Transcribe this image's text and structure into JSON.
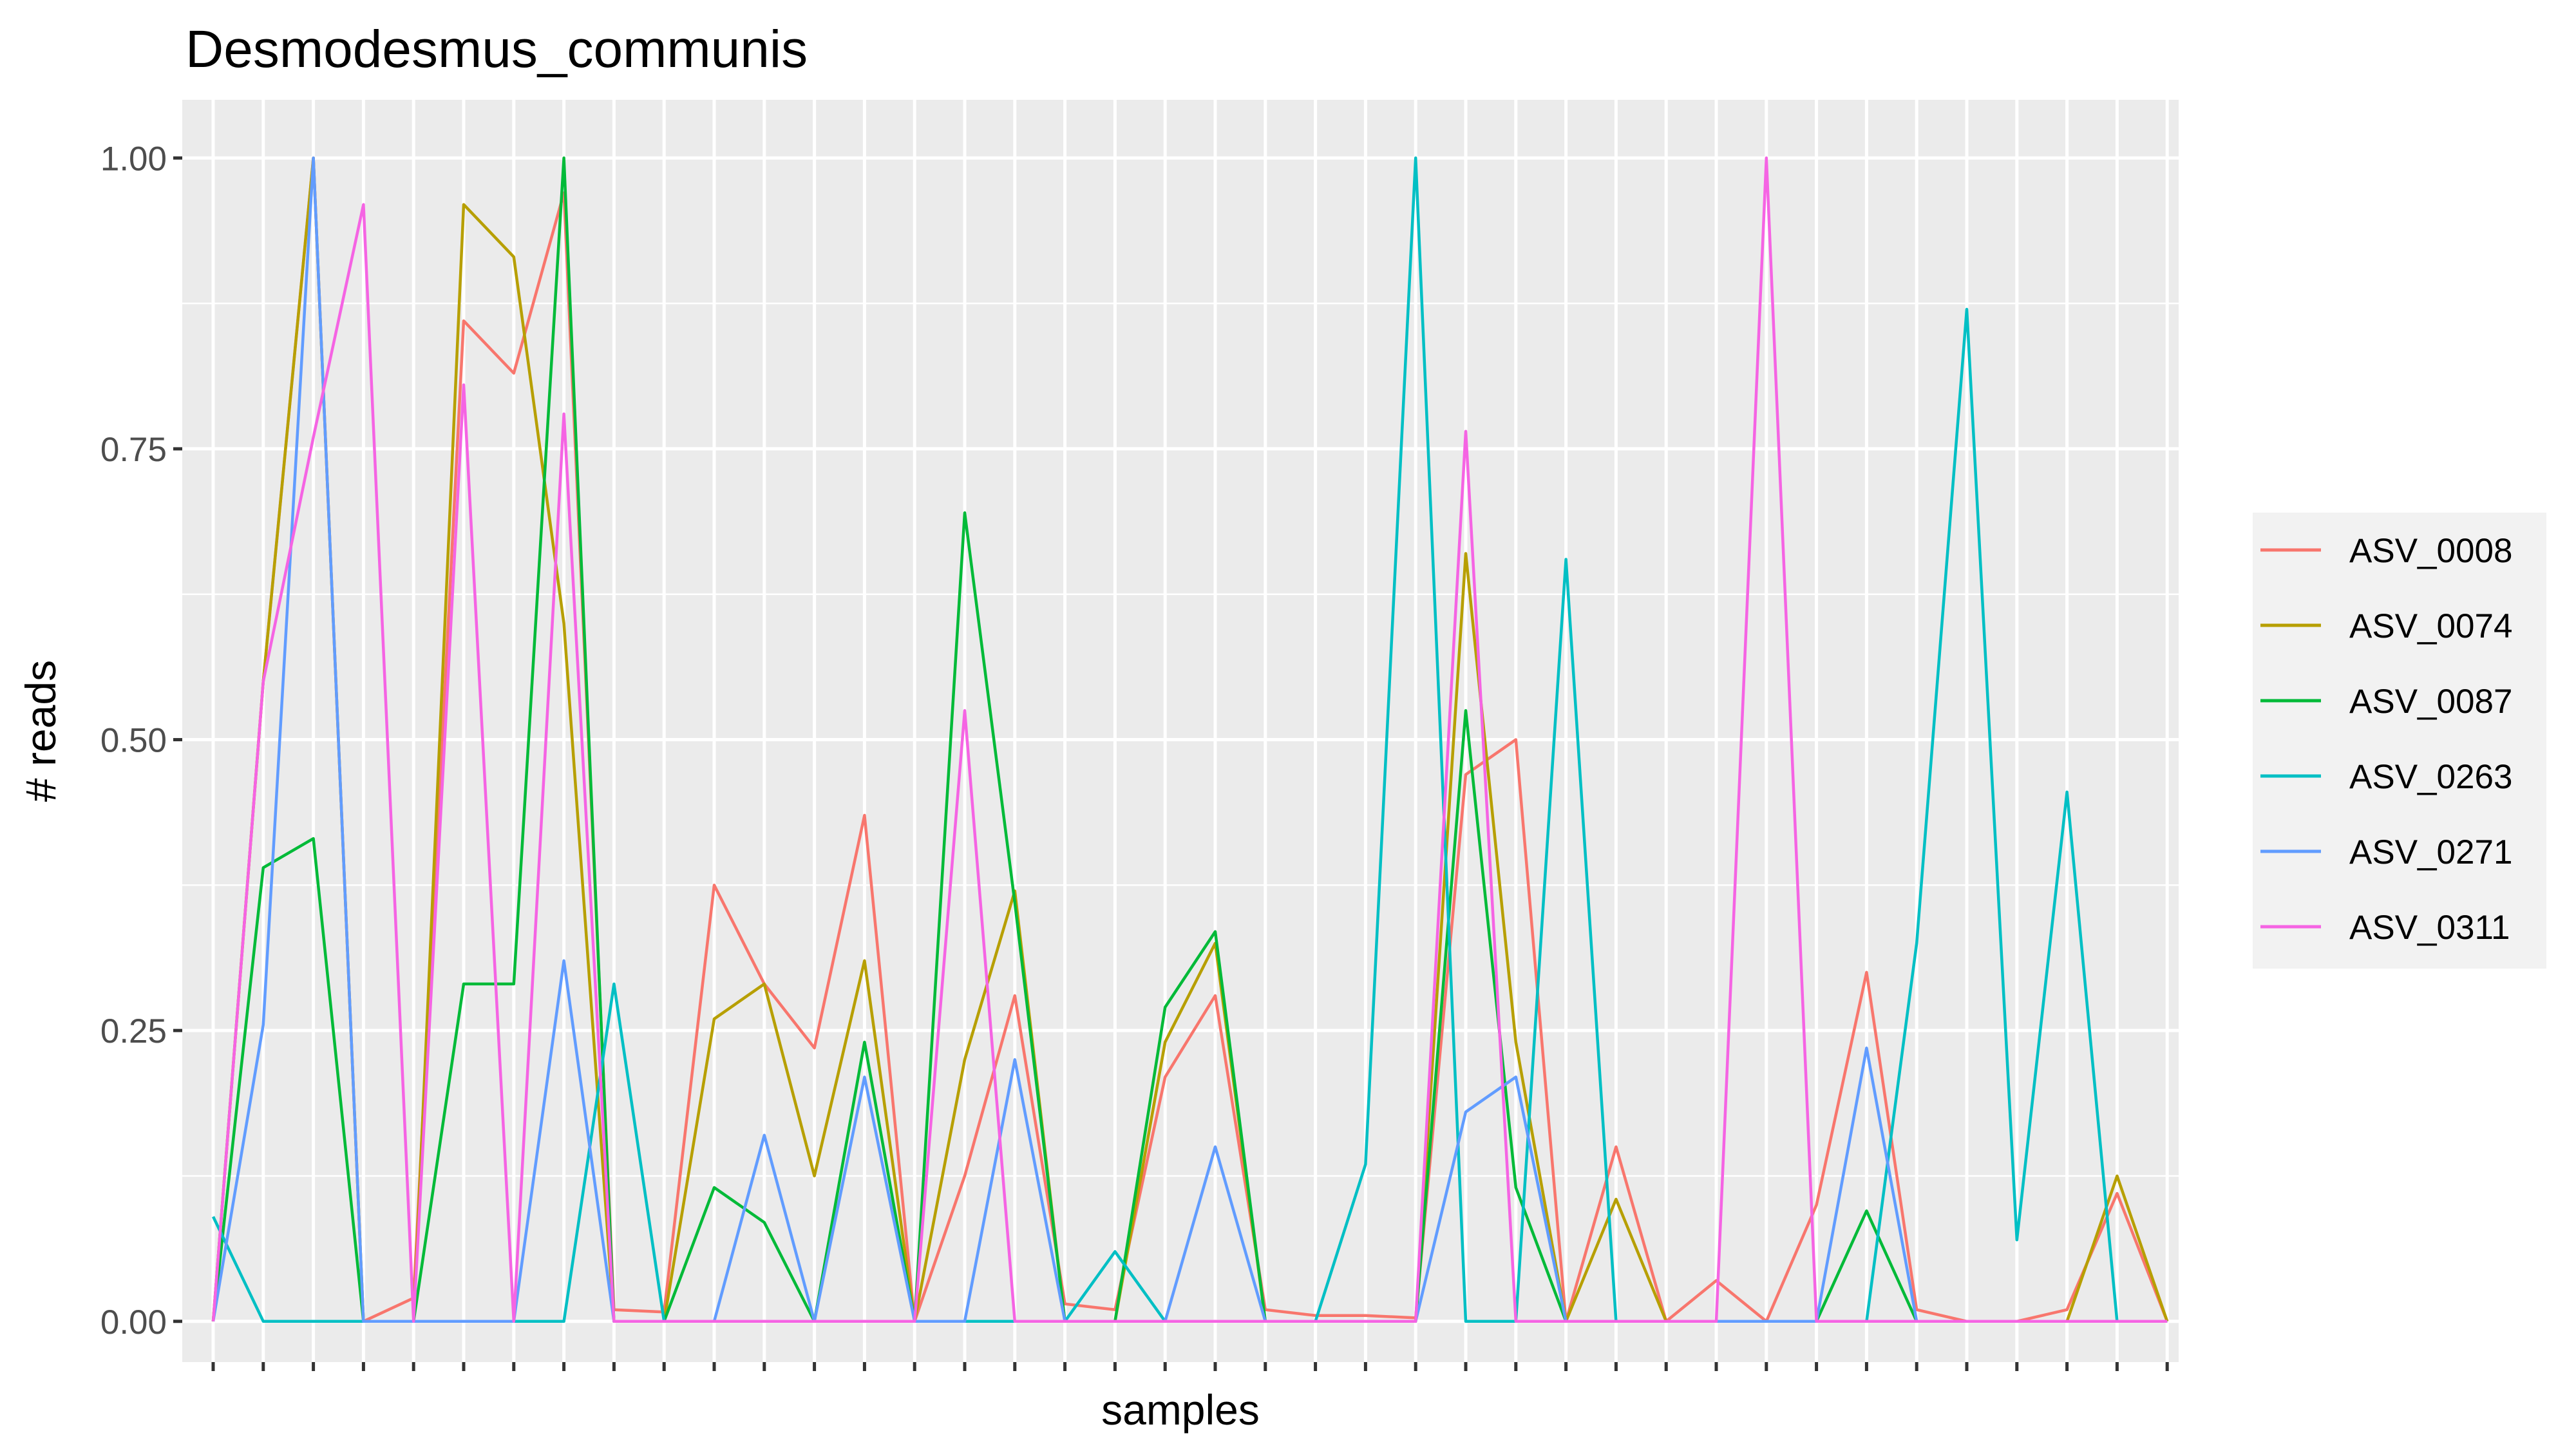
{
  "chart_data": {
    "type": "line",
    "title": "Desmodesmus_communis",
    "xlabel": "samples",
    "ylabel": "# reads",
    "ylim": [
      -0.035,
      1.05
    ],
    "yticks": [
      {
        "value": 0.0,
        "label": "0.00"
      },
      {
        "value": 0.25,
        "label": "0.25"
      },
      {
        "value": 0.5,
        "label": "0.50"
      },
      {
        "value": 0.75,
        "label": "0.75"
      },
      {
        "value": 1.0,
        "label": "1.00"
      }
    ],
    "grid": true,
    "legend_position": "right",
    "n_samples": 40,
    "series": [
      {
        "name": "ASV_0008",
        "color": "#F8766D",
        "values": [
          0,
          0.55,
          1.0,
          0,
          0.02,
          0.86,
          0.815,
          0.97,
          0.01,
          0.008,
          0.375,
          0.29,
          0.235,
          0.435,
          0,
          0.125,
          0.28,
          0.015,
          0.01,
          0.21,
          0.28,
          0.01,
          0.005,
          0.005,
          0.003,
          0.47,
          0.5,
          0,
          0.15,
          0,
          0.035,
          0,
          0.1,
          0.3,
          0.01,
          0,
          0,
          0.01,
          0.11,
          0
        ]
      },
      {
        "name": "ASV_0074",
        "color": "#B79F00",
        "values": [
          0,
          0.55,
          1.0,
          0,
          0,
          0.96,
          0.915,
          0.6,
          0,
          0,
          0.26,
          0.29,
          0.125,
          0.31,
          0,
          0.225,
          0.37,
          0,
          0,
          0.24,
          0.325,
          0,
          0,
          0,
          0,
          0.66,
          0.24,
          0,
          0.105,
          0,
          0,
          0,
          0,
          0,
          0,
          0,
          0,
          0,
          0.125,
          0
        ]
      },
      {
        "name": "ASV_0087",
        "color": "#00BA38",
        "values": [
          0,
          0.39,
          0.415,
          0,
          0,
          0.29,
          0.29,
          1.0,
          0,
          0,
          0.115,
          0.085,
          0,
          0.24,
          0,
          0.695,
          0.36,
          0,
          0,
          0.27,
          0.335,
          0,
          0,
          0,
          0,
          0.525,
          0.115,
          0,
          0,
          0,
          0,
          0,
          0,
          0.095,
          0,
          0,
          0,
          0,
          0,
          0
        ]
      },
      {
        "name": "ASV_0263",
        "color": "#00BFC4",
        "values": [
          0.09,
          0,
          0,
          0,
          0,
          0,
          0,
          0,
          0.29,
          0,
          0,
          0,
          0,
          0,
          0,
          0,
          0,
          0,
          0.06,
          0,
          0,
          0,
          0,
          0.135,
          1.0,
          0,
          0,
          0.655,
          0,
          0,
          0,
          0,
          0,
          0,
          0.325,
          0.87,
          0.07,
          0.455,
          0,
          0
        ]
      },
      {
        "name": "ASV_0271",
        "color": "#619CFF",
        "values": [
          0,
          0.255,
          1.0,
          0,
          0,
          0,
          0,
          0.31,
          0,
          0,
          0,
          0.16,
          0,
          0.21,
          0,
          0,
          0.225,
          0,
          0,
          0,
          0.15,
          0,
          0,
          0,
          0,
          0.18,
          0.21,
          0,
          0,
          0,
          0,
          0,
          0,
          0.235,
          0,
          0,
          0,
          0,
          0,
          0
        ]
      },
      {
        "name": "ASV_0311",
        "color": "#F564E3",
        "values": [
          0,
          0.55,
          0.76,
          0.96,
          0,
          0.805,
          0,
          0.78,
          0,
          0,
          0,
          0,
          0,
          0,
          0,
          0.525,
          0,
          0,
          0,
          0,
          0,
          0,
          0,
          0,
          0,
          0.765,
          0,
          0,
          0,
          0,
          0,
          1.0,
          0,
          0,
          0,
          0,
          0,
          0,
          0,
          0
        ]
      }
    ]
  }
}
